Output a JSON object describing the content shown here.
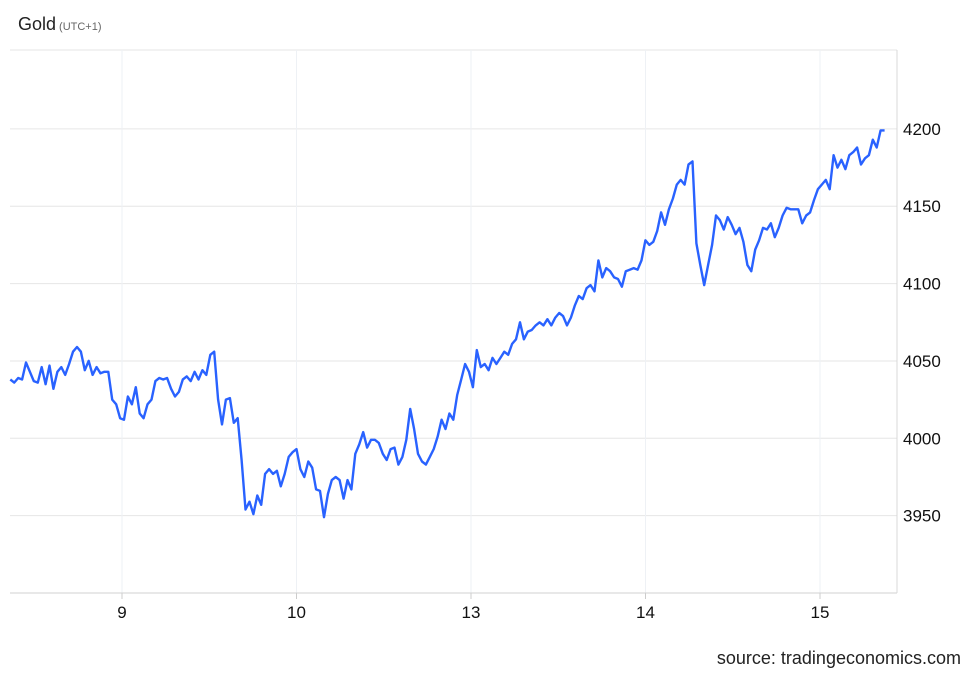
{
  "chart_data": {
    "type": "line",
    "title": "Gold",
    "subtitle": "(UTC+1)",
    "source": "source: tradingeconomics.com",
    "line_color": "#2962ff",
    "grid": true,
    "y_axis_side": "right",
    "ylim": [
      3900,
      4251
    ],
    "yticks": [
      3950,
      4000,
      4050,
      4100,
      4150,
      4200
    ],
    "x_axis_note": "trading-day axis; x values are trading-day positions where each tick marks a day",
    "xticks": [
      {
        "pos": 9,
        "label": "9"
      },
      {
        "pos": 10,
        "label": "10"
      },
      {
        "pos": 11,
        "label": "13"
      },
      {
        "pos": 12,
        "label": "14"
      },
      {
        "pos": 13,
        "label": "15"
      }
    ],
    "xlim": [
      8.36,
      13.45
    ],
    "series_x_range": [
      8.36,
      13.37
    ],
    "values": [
      4038,
      4036,
      4039,
      4038,
      4049,
      4043,
      4037,
      4036,
      4046,
      4035,
      4047,
      4032,
      4043,
      4046,
      4041,
      4048,
      4056,
      4059,
      4056,
      4044,
      4050,
      4041,
      4046,
      4042,
      4043,
      4043,
      4025,
      4022,
      4013,
      4012,
      4027,
      4022,
      4033,
      4016,
      4013,
      4022,
      4025,
      4037,
      4039,
      4038,
      4039,
      4032,
      4027,
      4030,
      4038,
      4040,
      4037,
      4043,
      4038,
      4044,
      4041,
      4054,
      4056,
      4025,
      4009,
      4025,
      4026,
      4010,
      4013,
      3986,
      3954,
      3959,
      3951,
      3963,
      3957,
      3977,
      3980,
      3977,
      3979,
      3969,
      3977,
      3988,
      3991,
      3993,
      3980,
      3975,
      3985,
      3981,
      3967,
      3966,
      3949,
      3964,
      3973,
      3975,
      3973,
      3961,
      3973,
      3967,
      3990,
      3996,
      4004,
      3994,
      3999,
      3999,
      3997,
      3990,
      3986,
      3993,
      3994,
      3983,
      3988,
      3999,
      4019,
      4006,
      3990,
      3985,
      3983,
      3988,
      3993,
      4001,
      4012,
      4006,
      4016,
      4012,
      4028,
      4038,
      4048,
      4043,
      4033,
      4057,
      4046,
      4048,
      4044,
      4052,
      4048,
      4052,
      4056,
      4054,
      4061,
      4064,
      4075,
      4064,
      4069,
      4070,
      4073,
      4075,
      4073,
      4077,
      4073,
      4078,
      4081,
      4079,
      4073,
      4078,
      4086,
      4092,
      4090,
      4097,
      4099,
      4095,
      4115,
      4104,
      4110,
      4108,
      4104,
      4103,
      4098,
      4108,
      4109,
      4110,
      4109,
      4115,
      4128,
      4125,
      4127,
      4134,
      4146,
      4138,
      4148,
      4155,
      4164,
      4167,
      4164,
      4177,
      4179,
      4126,
      4112,
      4099,
      4112,
      4125,
      4144,
      4141,
      4135,
      4143,
      4138,
      4132,
      4136,
      4127,
      4112,
      4108,
      4122,
      4128,
      4136,
      4135,
      4139,
      4130,
      4136,
      4144,
      4149,
      4148,
      4148,
      4148,
      4139,
      4144,
      4146,
      4154,
      4161,
      4164,
      4167,
      4161,
      4183,
      4175,
      4180,
      4174,
      4183,
      4185,
      4188,
      4177,
      4181,
      4183,
      4193,
      4188,
      4199,
      4199
    ]
  }
}
